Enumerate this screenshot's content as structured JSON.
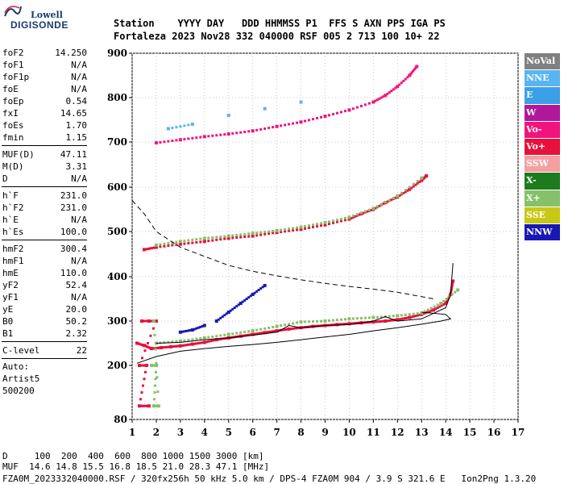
{
  "logo": {
    "line1": "Lowell",
    "line2": "DIGISONDE"
  },
  "header": {
    "labels": "Station    YYYY DAY   DDD HHMMSS P1  FFS S AXN PPS IGA PS",
    "values": "Fortaleza 2023 Nov28 332 040000 RSF 005 2 713 100 10+ 22"
  },
  "params": [
    {
      "label": "foF2",
      "value": "14.250"
    },
    {
      "label": "foF1",
      "value": "N/A"
    },
    {
      "label": "foF1p",
      "value": "N/A"
    },
    {
      "label": "foE",
      "value": "N/A"
    },
    {
      "label": "foEp",
      "value": "0.54"
    },
    {
      "label": "fxI",
      "value": "14.65"
    },
    {
      "label": "foEs",
      "value": "1.70"
    },
    {
      "label": "fmin",
      "value": "1.15"
    },
    {
      "sep": true
    },
    {
      "label": "MUF(D)",
      "value": "47.11"
    },
    {
      "label": "M(D)",
      "value": "3.31"
    },
    {
      "label": "D",
      "value": "N/A"
    },
    {
      "sep": true
    },
    {
      "label": "h`F",
      "value": "231.0"
    },
    {
      "label": "h`F2",
      "value": "231.0"
    },
    {
      "label": "h`E",
      "value": "N/A"
    },
    {
      "label": "h`Es",
      "value": "100.0"
    },
    {
      "sep": true
    },
    {
      "label": "hmF2",
      "value": "300.4"
    },
    {
      "label": "hmF1",
      "value": "N/A"
    },
    {
      "label": "hmE",
      "value": "110.0"
    },
    {
      "label": "yF2",
      "value": "52.4"
    },
    {
      "label": "yF1",
      "value": "N/A"
    },
    {
      "label": "yE",
      "value": "20.0"
    },
    {
      "label": "B0",
      "value": "50.2"
    },
    {
      "label": "B1",
      "value": "2.32"
    },
    {
      "sep": true
    },
    {
      "label": "C-level",
      "value": "22"
    },
    {
      "sep": true
    },
    {
      "text": "Auto:"
    },
    {
      "text": "Artist5"
    },
    {
      "text": "500200"
    }
  ],
  "legend": [
    {
      "label": "NoVal",
      "color": "#808080"
    },
    {
      "label": "NNE",
      "color": "#5ab4f0"
    },
    {
      "label": "E",
      "color": "#3ca0e6"
    },
    {
      "label": "W",
      "color": "#b0189c"
    },
    {
      "label": "Vo-",
      "color": "#f0147c"
    },
    {
      "label": "Vo+",
      "color": "#e8103c"
    },
    {
      "label": "SSW",
      "color": "#f4a0a0"
    },
    {
      "label": "X-",
      "color": "#1e7a1e"
    },
    {
      "label": "X+",
      "color": "#86c06a"
    },
    {
      "label": "SSE",
      "color": "#c8c814"
    },
    {
      "label": "NNW",
      "color": "#1818b4"
    }
  ],
  "footer": {
    "line1": "D     100  200  400  600  800 1000 1500 3000 [km]",
    "line2": "MUF  14.6 14.8 15.5 16.8 18.5 21.0 28.3 47.1 [MHz]",
    "line3": "FZA0M_2023332040000.RSF / 320fx256h 50 kHz 5.0 km / DPS-4 FZA0M 904 / 3.9 S 321.6 E   Ion2Png 1.3.20"
  },
  "chart_data": {
    "type": "scatter",
    "x_ticks": [
      1,
      2,
      3,
      4,
      5,
      6,
      7,
      8,
      9,
      10,
      11,
      12,
      13,
      14,
      15,
      16,
      17
    ],
    "y_ticks": [
      80,
      200,
      300,
      400,
      500,
      600,
      700,
      800,
      900
    ],
    "xlim": [
      1,
      17
    ],
    "y_scale": "piecewise",
    "grid": true,
    "series": [
      {
        "color": "#e8103c",
        "points": [
          [
            1.2,
            250
          ],
          [
            1.5,
            245
          ],
          [
            1.8,
            238
          ],
          [
            2.2,
            240
          ],
          [
            2.6,
            242
          ],
          [
            3,
            244
          ],
          [
            3.5,
            248
          ],
          [
            4,
            252
          ],
          [
            4.5,
            258
          ],
          [
            5,
            262
          ],
          [
            5.5,
            266
          ],
          [
            6,
            270
          ],
          [
            6.5,
            274
          ],
          [
            7,
            278
          ],
          [
            7.5,
            282
          ],
          [
            8,
            285
          ],
          [
            8.5,
            288
          ],
          [
            9,
            290
          ],
          [
            9.5,
            292
          ],
          [
            10,
            294
          ],
          [
            10.5,
            296
          ],
          [
            11,
            298
          ],
          [
            11.5,
            300
          ],
          [
            12,
            303
          ],
          [
            12.5,
            308
          ],
          [
            13,
            315
          ],
          [
            13.5,
            325
          ],
          [
            14,
            340
          ],
          [
            14.2,
            360
          ],
          [
            14.3,
            390
          ]
        ]
      },
      {
        "color": "#86c06a",
        "points": [
          [
            2,
            250
          ],
          [
            3,
            255
          ],
          [
            4,
            262
          ],
          [
            5,
            270
          ],
          [
            6,
            278
          ],
          [
            7,
            288
          ],
          [
            8,
            298
          ],
          [
            9,
            300
          ],
          [
            10,
            305
          ],
          [
            11,
            308
          ],
          [
            12,
            312
          ],
          [
            13,
            318
          ],
          [
            13.8,
            340
          ],
          [
            14.5,
            370
          ]
        ]
      },
      {
        "color": "#1818b4",
        "points": [
          [
            4.5,
            300
          ],
          [
            5,
            320
          ],
          [
            5.5,
            340
          ],
          [
            6,
            360
          ],
          [
            6.5,
            380
          ],
          [
            3,
            275
          ],
          [
            3.5,
            280
          ],
          [
            4,
            290
          ]
        ]
      },
      {
        "color": "#e8103c",
        "points": [
          [
            1.5,
            460
          ],
          [
            2,
            465
          ],
          [
            3,
            472
          ],
          [
            4,
            478
          ],
          [
            5,
            485
          ],
          [
            6,
            490
          ],
          [
            7,
            498
          ],
          [
            8,
            505
          ],
          [
            9,
            515
          ],
          [
            10,
            528
          ],
          [
            10.5,
            540
          ],
          [
            11,
            550
          ],
          [
            11.5,
            565
          ],
          [
            12,
            578
          ],
          [
            12.5,
            595
          ],
          [
            13,
            615
          ],
          [
            13.2,
            625
          ]
        ]
      },
      {
        "color": "#86c06a",
        "points": [
          [
            2,
            470
          ],
          [
            3,
            478
          ],
          [
            4,
            485
          ],
          [
            5,
            490
          ],
          [
            6,
            496
          ],
          [
            7,
            502
          ],
          [
            8,
            510
          ],
          [
            9,
            520
          ],
          [
            10,
            532
          ],
          [
            11,
            552
          ],
          [
            12,
            580
          ],
          [
            13,
            620
          ]
        ]
      },
      {
        "color": "#f0147c",
        "points": [
          [
            2,
            698
          ],
          [
            3,
            705
          ],
          [
            4,
            712
          ],
          [
            5,
            718
          ],
          [
            6,
            725
          ],
          [
            7,
            735
          ],
          [
            8,
            745
          ],
          [
            9,
            758
          ],
          [
            10,
            772
          ],
          [
            11,
            790
          ],
          [
            11.5,
            805
          ],
          [
            12,
            825
          ],
          [
            12.5,
            850
          ],
          [
            12.8,
            870
          ]
        ]
      },
      {
        "color": "#5ab4f0",
        "points": [
          [
            2.5,
            730
          ],
          [
            3.5,
            740
          ],
          [
            5,
            760
          ],
          [
            6.5,
            775
          ],
          [
            8,
            790
          ]
        ]
      },
      {
        "color": "#e8103c",
        "points": [
          [
            1.4,
            300
          ],
          [
            1.7,
            300
          ],
          [
            2,
            300
          ],
          [
            1.3,
            200
          ],
          [
            1.6,
            200
          ],
          [
            1.3,
            110
          ],
          [
            1.7,
            110
          ]
        ]
      },
      {
        "color": "#86c06a",
        "points": [
          [
            1.8,
            200
          ],
          [
            2,
            200
          ],
          [
            1.9,
            110
          ],
          [
            2.1,
            110
          ],
          [
            1.9,
            300
          ]
        ]
      }
    ],
    "curves": [
      {
        "style": "solid",
        "points": [
          [
            1.2,
            205
          ],
          [
            2,
            220
          ],
          [
            3,
            232
          ],
          [
            4,
            238
          ],
          [
            5,
            243
          ],
          [
            6,
            247
          ],
          [
            7,
            252
          ],
          [
            8,
            258
          ],
          [
            9,
            264
          ],
          [
            10,
            270
          ],
          [
            11,
            278
          ],
          [
            12,
            285
          ],
          [
            13,
            293
          ],
          [
            13.8,
            300
          ],
          [
            14.2,
            305
          ],
          [
            14,
            315
          ],
          [
            13,
            320
          ]
        ]
      },
      {
        "style": "solid",
        "points": [
          [
            2,
            250
          ],
          [
            3,
            252
          ],
          [
            4,
            258
          ],
          [
            5,
            262
          ],
          [
            6,
            268
          ],
          [
            7,
            275
          ],
          [
            7.5,
            290
          ],
          [
            8,
            285
          ],
          [
            9,
            290
          ],
          [
            10,
            292
          ],
          [
            11,
            300
          ],
          [
            11.5,
            310
          ],
          [
            12,
            300
          ],
          [
            13,
            305
          ],
          [
            14,
            330
          ],
          [
            14.2,
            360
          ],
          [
            14.3,
            430
          ]
        ]
      },
      {
        "style": "dashed",
        "points": [
          [
            1,
            570
          ],
          [
            1.5,
            540
          ],
          [
            2,
            500
          ],
          [
            3,
            465
          ],
          [
            4,
            445
          ],
          [
            5,
            425
          ],
          [
            6,
            412
          ],
          [
            7,
            402
          ],
          [
            8,
            393
          ],
          [
            9,
            385
          ],
          [
            10,
            378
          ],
          [
            11,
            372
          ],
          [
            12,
            365
          ],
          [
            13,
            355
          ],
          [
            13.5,
            350
          ]
        ]
      }
    ]
  }
}
